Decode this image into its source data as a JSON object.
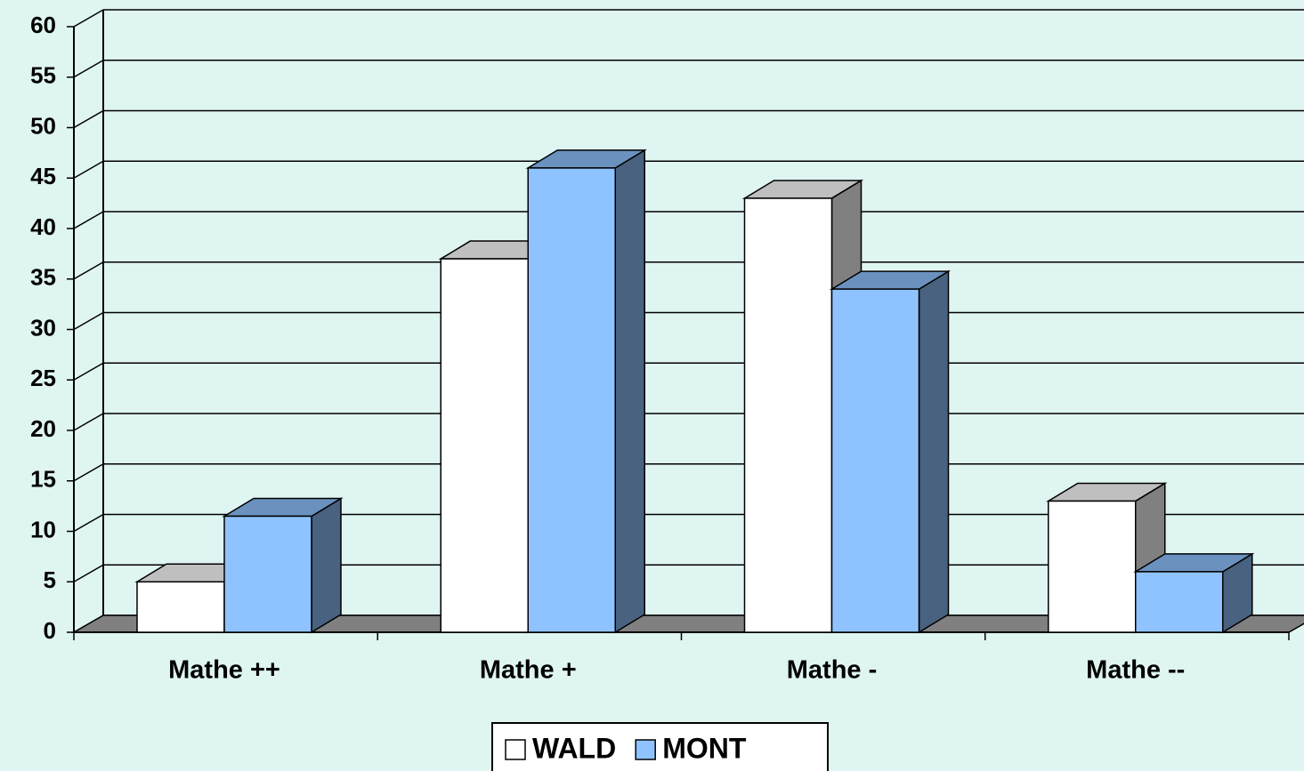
{
  "chart_data": {
    "type": "bar",
    "categories": [
      "Mathe ++",
      "Mathe +",
      "Mathe -",
      "Mathe --"
    ],
    "series": [
      {
        "name": "WALD",
        "color": "#ffffff",
        "values": [
          5,
          37,
          43,
          13
        ]
      },
      {
        "name": "MONT",
        "color": "#8fc3ff",
        "values": [
          11.5,
          46,
          34,
          6
        ]
      }
    ],
    "ylim": [
      0,
      60
    ],
    "yticks": [
      0,
      5,
      10,
      15,
      20,
      25,
      30,
      35,
      40,
      45,
      50,
      55,
      60
    ],
    "grid": true,
    "legend": "bottom"
  }
}
